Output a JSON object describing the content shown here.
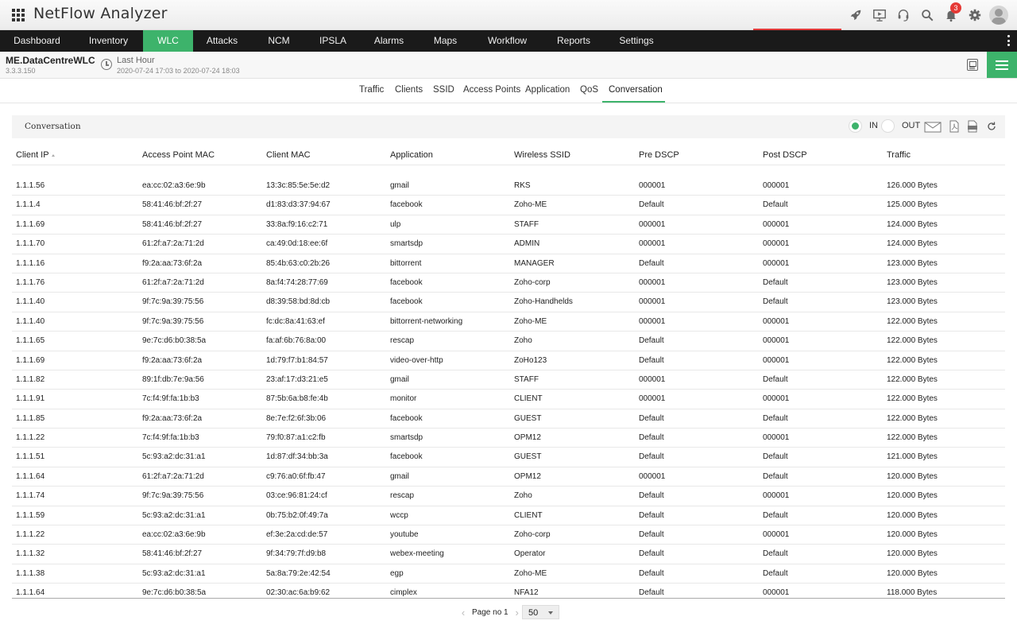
{
  "app": {
    "title": "NetFlow Analyzer",
    "notification_count": "3"
  },
  "nav": {
    "items": [
      {
        "label": "Dashboard",
        "active": false
      },
      {
        "label": "Inventory",
        "active": false
      },
      {
        "label": "WLC",
        "active": true
      },
      {
        "label": "Attacks",
        "active": false
      },
      {
        "label": "NCM",
        "active": false
      },
      {
        "label": "IPSLA",
        "active": false
      },
      {
        "label": "Alarms",
        "active": false
      },
      {
        "label": "Maps",
        "active": false
      },
      {
        "label": "Workflow",
        "active": false
      },
      {
        "label": "Reports",
        "active": false
      },
      {
        "label": "Settings",
        "active": false
      }
    ]
  },
  "device": {
    "name": "ME.DataCentreWLC",
    "ip": "3.3.3.150",
    "period": "Last Hour",
    "range": "2020-07-24 17:03 to 2020-07-24 18:03"
  },
  "subtabs": [
    "Traffic",
    "Clients",
    "SSID",
    "Access Points",
    "Application",
    "QoS",
    "Conversation"
  ],
  "subtabs_active": "Conversation",
  "widget": {
    "title": "Conversation",
    "in_label": "IN",
    "out_label": "OUT",
    "selected_direction": "IN"
  },
  "table": {
    "columns": [
      "Client IP",
      "Access Point MAC",
      "Client MAC",
      "Application",
      "Wireless SSID",
      "Pre DSCP",
      "Post DSCP",
      "Traffic"
    ],
    "sorted_column": "Client IP",
    "rows": [
      [
        "1.1.1.56",
        "ea:cc:02:a3:6e:9b",
        "13:3c:85:5e:5e:d2",
        "gmail",
        "RKS",
        "000001",
        "000001",
        "126.000 Bytes"
      ],
      [
        "1.1.1.4",
        "58:41:46:bf:2f:27",
        "d1:83:d3:37:94:67",
        "facebook",
        "Zoho-ME",
        "Default",
        "Default",
        "125.000 Bytes"
      ],
      [
        "1.1.1.69",
        "58:41:46:bf:2f:27",
        "33:8a:f9:16:c2:71",
        "ulp",
        "STAFF",
        "000001",
        "000001",
        "124.000 Bytes"
      ],
      [
        "1.1.1.70",
        "61:2f:a7:2a:71:2d",
        "ca:49:0d:18:ee:6f",
        "smartsdp",
        "ADMIN",
        "000001",
        "000001",
        "124.000 Bytes"
      ],
      [
        "1.1.1.16",
        "f9:2a:aa:73:6f:2a",
        "85:4b:63:c0:2b:26",
        "bittorrent",
        "MANAGER",
        "Default",
        "000001",
        "123.000 Bytes"
      ],
      [
        "1.1.1.76",
        "61:2f:a7:2a:71:2d",
        "8a:f4:74:28:77:69",
        "facebook",
        "Zoho-corp",
        "000001",
        "Default",
        "123.000 Bytes"
      ],
      [
        "1.1.1.40",
        "9f:7c:9a:39:75:56",
        "d8:39:58:bd:8d:cb",
        "facebook",
        "Zoho-Handhelds",
        "000001",
        "Default",
        "123.000 Bytes"
      ],
      [
        "1.1.1.40",
        "9f:7c:9a:39:75:56",
        "fc:dc:8a:41:63:ef",
        "bittorrent-networking",
        "Zoho-ME",
        "000001",
        "000001",
        "122.000 Bytes"
      ],
      [
        "1.1.1.65",
        "9e:7c:d6:b0:38:5a",
        "fa:af:6b:76:8a:00",
        "rescap",
        "Zoho",
        "Default",
        "000001",
        "122.000 Bytes"
      ],
      [
        "1.1.1.69",
        "f9:2a:aa:73:6f:2a",
        "1d:79:f7:b1:84:57",
        "video-over-http",
        "ZoHo123",
        "Default",
        "000001",
        "122.000 Bytes"
      ],
      [
        "1.1.1.82",
        "89:1f:db:7e:9a:56",
        "23:af:17:d3:21:e5",
        "gmail",
        "STAFF",
        "000001",
        "Default",
        "122.000 Bytes"
      ],
      [
        "1.1.1.91",
        "7c:f4:9f:fa:1b:b3",
        "87:5b:6a:b8:fe:4b",
        "monitor",
        "CLIENT",
        "000001",
        "000001",
        "122.000 Bytes"
      ],
      [
        "1.1.1.85",
        "f9:2a:aa:73:6f:2a",
        "8e:7e:f2:6f:3b:06",
        "facebook",
        "GUEST",
        "Default",
        "Default",
        "122.000 Bytes"
      ],
      [
        "1.1.1.22",
        "7c:f4:9f:fa:1b:b3",
        "79:f0:87:a1:c2:fb",
        "smartsdp",
        "OPM12",
        "Default",
        "000001",
        "122.000 Bytes"
      ],
      [
        "1.1.1.51",
        "5c:93:a2:dc:31:a1",
        "1d:87:df:34:bb:3a",
        "facebook",
        "GUEST",
        "Default",
        "Default",
        "121.000 Bytes"
      ],
      [
        "1.1.1.64",
        "61:2f:a7:2a:71:2d",
        "c9:76:a0:6f:fb:47",
        "gmail",
        "OPM12",
        "000001",
        "Default",
        "120.000 Bytes"
      ],
      [
        "1.1.1.74",
        "9f:7c:9a:39:75:56",
        "03:ce:96:81:24:cf",
        "rescap",
        "Zoho",
        "Default",
        "000001",
        "120.000 Bytes"
      ],
      [
        "1.1.1.59",
        "5c:93:a2:dc:31:a1",
        "0b:75:b2:0f:49:7a",
        "wccp",
        "CLIENT",
        "Default",
        "Default",
        "120.000 Bytes"
      ],
      [
        "1.1.1.22",
        "ea:cc:02:a3:6e:9b",
        "ef:3e:2a:cd:de:57",
        "youtube",
        "Zoho-corp",
        "Default",
        "000001",
        "120.000 Bytes"
      ],
      [
        "1.1.1.32",
        "58:41:46:bf:2f:27",
        "9f:34:79:7f:d9:b8",
        "webex-meeting",
        "Operator",
        "Default",
        "Default",
        "120.000 Bytes"
      ],
      [
        "1.1.1.38",
        "5c:93:a2:dc:31:a1",
        "5a:8a:79:2e:42:54",
        "egp",
        "Zoho-ME",
        "Default",
        "Default",
        "120.000 Bytes"
      ],
      [
        "1.1.1.64",
        "9e:7c:d6:b0:38:5a",
        "02:30:ac:6a:b9:62",
        "cimplex",
        "NFA12",
        "Default",
        "000001",
        "118.000 Bytes"
      ]
    ]
  },
  "pager": {
    "label": "Page no 1",
    "page_size": "50"
  },
  "colors": {
    "accent": "#3db36b",
    "nav_bg": "#1a1a1a",
    "badge": "#e53935"
  }
}
